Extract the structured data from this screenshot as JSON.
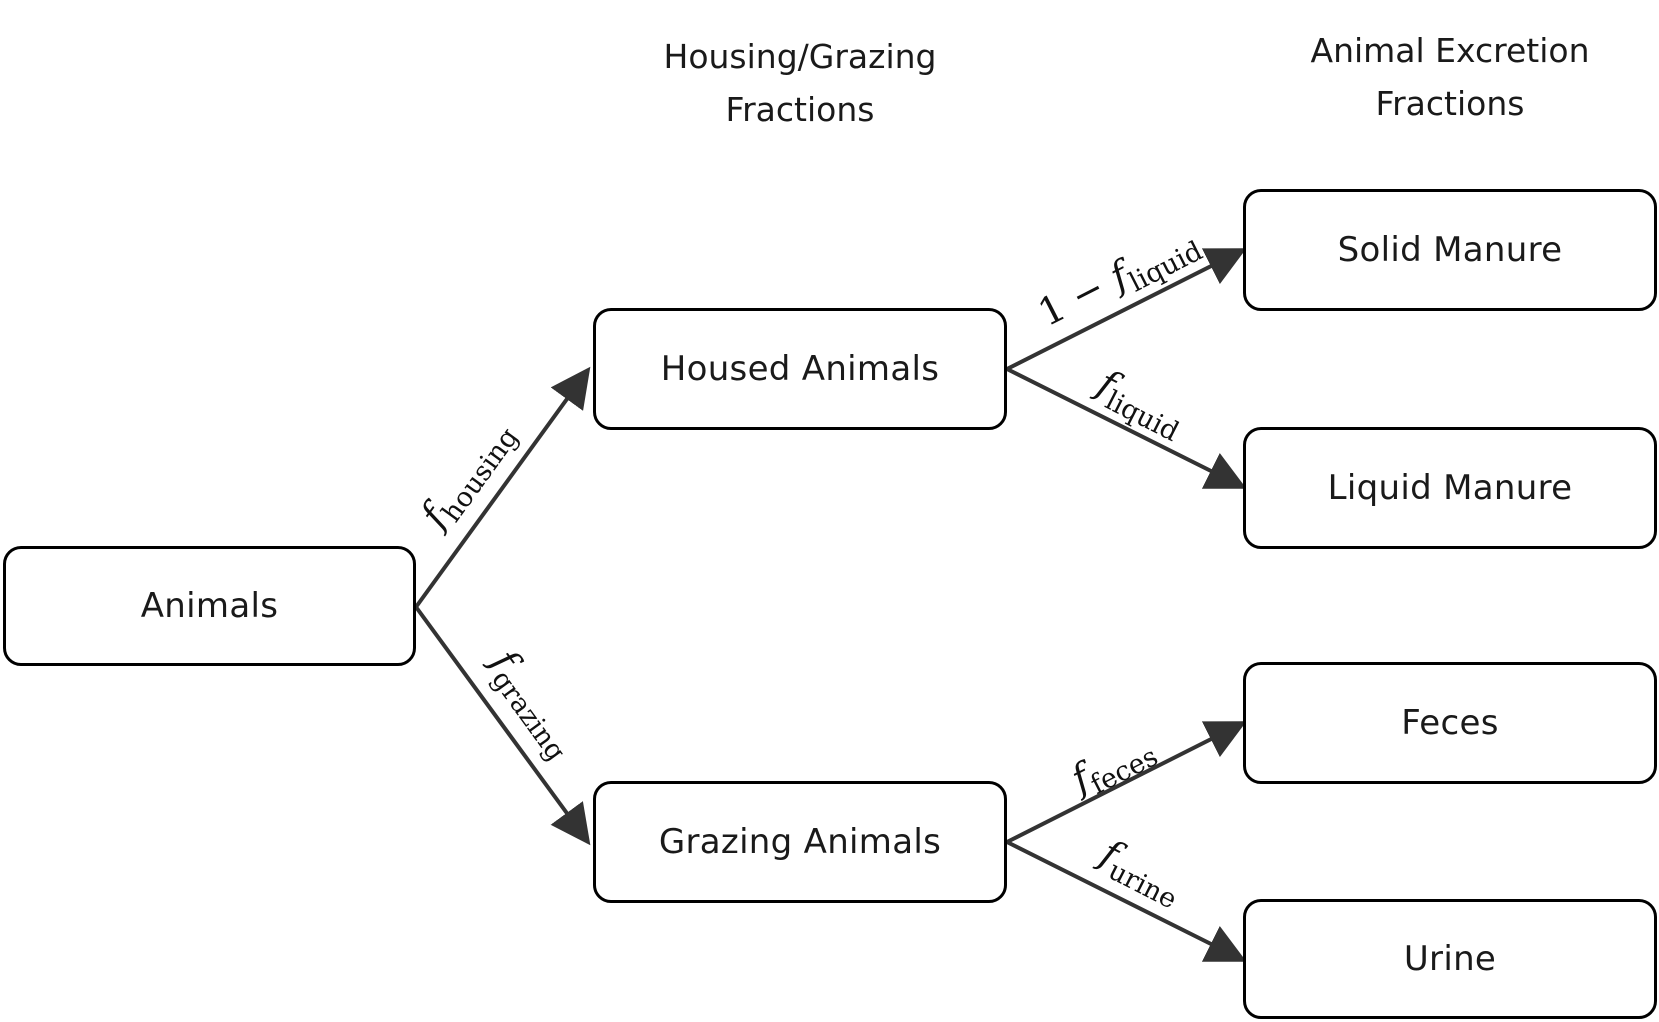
{
  "headers": {
    "housing": [
      "Housing/Grazing",
      "Fractions"
    ],
    "excretion": [
      "Animal Excretion",
      "Fractions"
    ]
  },
  "nodes": {
    "animals": "Animals",
    "housed": "Housed Animals",
    "grazing": "Grazing Animals",
    "solid": "Solid Manure",
    "liquid": "Liquid Manure",
    "feces": "Feces",
    "urine": "Urine"
  },
  "edges": {
    "housing": {
      "prefix": "",
      "symbol": "f",
      "subscript": "housing"
    },
    "grazing": {
      "prefix": "",
      "symbol": "f",
      "subscript": "grazing"
    },
    "solid": {
      "prefix": "1 − ",
      "symbol": "f",
      "subscript": "liquid"
    },
    "liquid": {
      "prefix": "",
      "symbol": "f",
      "subscript": "liquid"
    },
    "feces": {
      "prefix": "",
      "symbol": "f",
      "subscript": "feces"
    },
    "urine": {
      "prefix": "",
      "symbol": "f",
      "subscript": "urine"
    }
  },
  "colors": {
    "arrow": "#333333",
    "border": "#000000"
  }
}
